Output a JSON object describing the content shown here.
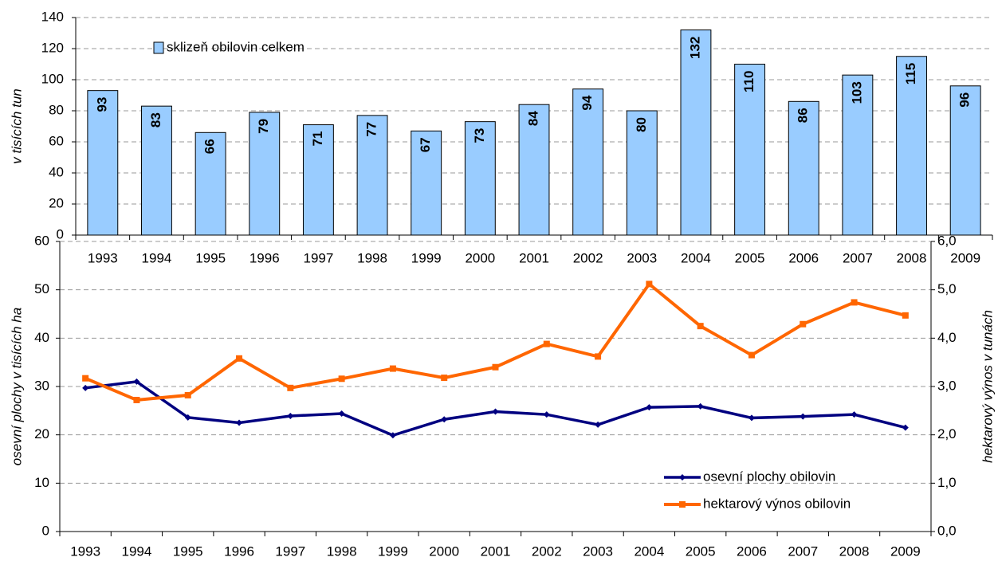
{
  "chart_data": [
    {
      "type": "bar",
      "y_label": "v tisících tun",
      "categories": [
        "1993",
        "1994",
        "1995",
        "1996",
        "1997",
        "1998",
        "1999",
        "2000",
        "2001",
        "2002",
        "2003",
        "2004",
        "2005",
        "2006",
        "2007",
        "2008",
        "2009"
      ],
      "series": [
        {
          "name": "sklizeň obilovin celkem",
          "color": "#99ccff",
          "values": [
            93,
            83,
            66,
            79,
            71,
            77,
            67,
            73,
            84,
            94,
            80,
            132,
            110,
            86,
            103,
            115,
            96
          ]
        }
      ],
      "ylim": [
        0,
        140
      ],
      "yticks": [
        0,
        20,
        40,
        60,
        80,
        100,
        120,
        140
      ],
      "grid": true,
      "legend": "top-left"
    },
    {
      "type": "line",
      "y_label": "osevní plochy v tisících ha",
      "y2_label": "hektarový výnos v tunách",
      "categories": [
        "1993",
        "1994",
        "1995",
        "1996",
        "1997",
        "1998",
        "1999",
        "2000",
        "2001",
        "2002",
        "2003",
        "2004",
        "2005",
        "2006",
        "2007",
        "2008",
        "2009"
      ],
      "series": [
        {
          "name": "osevní plochy obilovin",
          "color": "#000080",
          "values": [
            29.7,
            31.0,
            23.6,
            22.5,
            23.9,
            24.4,
            19.9,
            23.2,
            24.8,
            24.2,
            22.1,
            25.7,
            25.9,
            23.5,
            23.8,
            24.2,
            21.5
          ]
        },
        {
          "name": "hektarový výnos obilovin",
          "color": "#ff6600",
          "axis": "y2",
          "values": [
            3.17,
            2.72,
            2.82,
            3.58,
            2.97,
            3.16,
            3.37,
            3.18,
            3.4,
            3.88,
            3.62,
            5.12,
            4.25,
            3.65,
            4.29,
            4.74,
            4.47
          ]
        }
      ],
      "ylim": [
        0,
        60
      ],
      "yticks": [
        0,
        10,
        20,
        30,
        40,
        50,
        60
      ],
      "y2lim": [
        0,
        6
      ],
      "y2ticks": [
        {
          "value": 0,
          "label": "0,0"
        },
        {
          "value": 1,
          "label": "1,0"
        },
        {
          "value": 2,
          "label": "2,0"
        },
        {
          "value": 3,
          "label": "3,0"
        },
        {
          "value": 4,
          "label": "4,0"
        },
        {
          "value": 5,
          "label": "5,0"
        },
        {
          "value": 6,
          "label": "6,0"
        }
      ],
      "grid": true,
      "legend": "bottom-right"
    }
  ]
}
